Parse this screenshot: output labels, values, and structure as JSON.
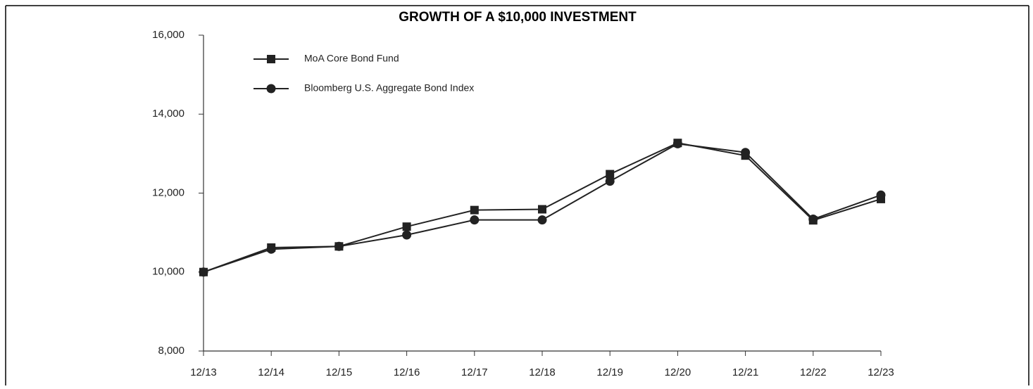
{
  "chart_data": {
    "type": "line",
    "title": "GROWTH OF A $10,000 INVESTMENT",
    "categories": [
      "12/13",
      "12/14",
      "12/15",
      "12/16",
      "12/17",
      "12/18",
      "12/19",
      "12/20",
      "12/21",
      "12/22",
      "12/23"
    ],
    "series": [
      {
        "name": "MoA Core Bond Fund",
        "color": "#222222",
        "marker": "square",
        "values": [
          10000,
          10620,
          10650,
          11150,
          11570,
          11590,
          12480,
          13270,
          12950,
          11310,
          11850
        ]
      },
      {
        "name": "Bloomberg U.S. Aggregate Bond Index",
        "color": "#222222",
        "marker": "circle",
        "values": [
          10000,
          10580,
          10650,
          10940,
          11320,
          11320,
          12300,
          13250,
          13030,
          11340,
          11950
        ]
      }
    ],
    "ylim": [
      8000,
      16000
    ],
    "yticks": [
      {
        "value": 8000,
        "label": "8,000"
      },
      {
        "value": 10000,
        "label": "10,000"
      },
      {
        "value": 12000,
        "label": "12,000"
      },
      {
        "value": 14000,
        "label": "14,000"
      },
      {
        "value": 16000,
        "label": "16,000"
      }
    ],
    "legend": "upper left",
    "grid": false
  }
}
